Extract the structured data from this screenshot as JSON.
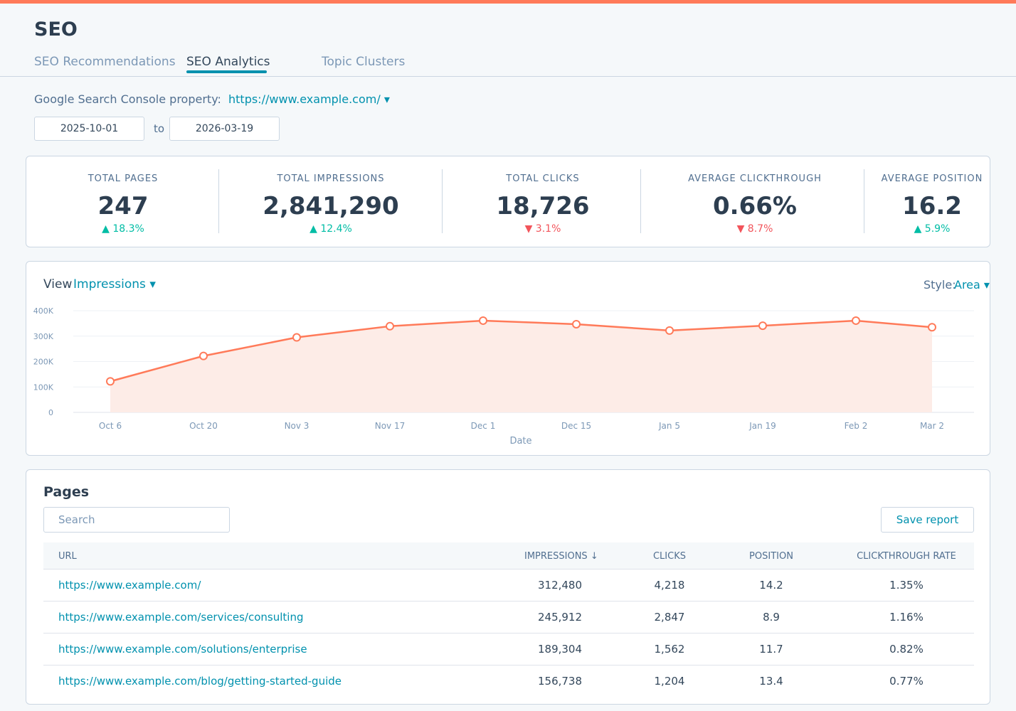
{
  "header": {
    "title": "SEO",
    "tabs": [
      {
        "label": "SEO Recommendations"
      },
      {
        "label": "SEO Analytics"
      },
      {
        "label": "Topic Clusters"
      }
    ]
  },
  "filters": {
    "gsc_label": "Google Search Console property:",
    "gsc_property": "https://www.example.com/ ▾",
    "start_date": "2025-10-01",
    "to_label": "to",
    "end_date": "2026-03-19"
  },
  "kpis": [
    {
      "label": "TOTAL PAGES",
      "value": "247",
      "change": "▲ 18.3%",
      "direction": "up"
    },
    {
      "label": "TOTAL IMPRESSIONS",
      "value": "2,841,290",
      "change": "▲ 12.4%",
      "direction": "up"
    },
    {
      "label": "TOTAL CLICKS",
      "value": "18,726",
      "change": "▼ 3.1%",
      "direction": "down"
    },
    {
      "label": "AVERAGE CLICKTHROUGH",
      "value": "0.66%",
      "change": "▼ 8.7%",
      "direction": "down"
    },
    {
      "label": "AVERAGE POSITION",
      "value": "16.2",
      "change": "▲ 5.9%",
      "direction": "up"
    }
  ],
  "chart_controls": {
    "view_label": "View",
    "view_value": "Impressions ▾",
    "style_label": "Style:",
    "style_value": "Area ▾"
  },
  "chart_data": {
    "type": "area",
    "x": [
      "Oct 6",
      "Oct 20",
      "Nov 3",
      "Nov 17",
      "Dec 1",
      "Dec 15",
      "Jan 5",
      "Jan 19",
      "Feb 2",
      "Mar 2"
    ],
    "series": [
      {
        "values": [
          122000,
          222000,
          295000,
          339000,
          361000,
          347000,
          322000,
          341000,
          361000,
          335000
        ]
      }
    ],
    "xlabel": "Date",
    "ylabel": "",
    "ylim": [
      0,
      400000
    ],
    "yticks": [
      0,
      100000,
      200000,
      300000,
      400000
    ],
    "ytick_labels": [
      "0",
      "100K",
      "200K",
      "300K",
      "400K"
    ],
    "grid": true,
    "color": "#ff7a59",
    "fill_color": "#fdece7"
  },
  "pages": {
    "title": "Pages",
    "search_placeholder": "Search",
    "save_label": "Save report",
    "columns": {
      "url": "URL",
      "impressions": "IMPRESSIONS ↓",
      "clicks": "CLICKS",
      "position": "POSITION",
      "ctr": "CLICKTHROUGH RATE"
    },
    "rows": [
      {
        "url": "https://www.example.com/",
        "impressions": "312,480",
        "clicks": "4,218",
        "position": "14.2",
        "ctr": "1.35%"
      },
      {
        "url": "https://www.example.com/services/consulting",
        "impressions": "245,912",
        "clicks": "2,847",
        "position": "8.9",
        "ctr": "1.16%"
      },
      {
        "url": "https://www.example.com/solutions/enterprise",
        "impressions": "189,304",
        "clicks": "1,562",
        "position": "11.7",
        "ctr": "0.82%"
      },
      {
        "url": "https://www.example.com/blog/getting-started-guide",
        "impressions": "156,738",
        "clicks": "1,204",
        "position": "13.4",
        "ctr": "0.77%"
      }
    ]
  },
  "colors": {
    "accent": "#ff7a59",
    "link": "#0091ae",
    "positive": "#00bda5",
    "negative": "#f2545b"
  }
}
